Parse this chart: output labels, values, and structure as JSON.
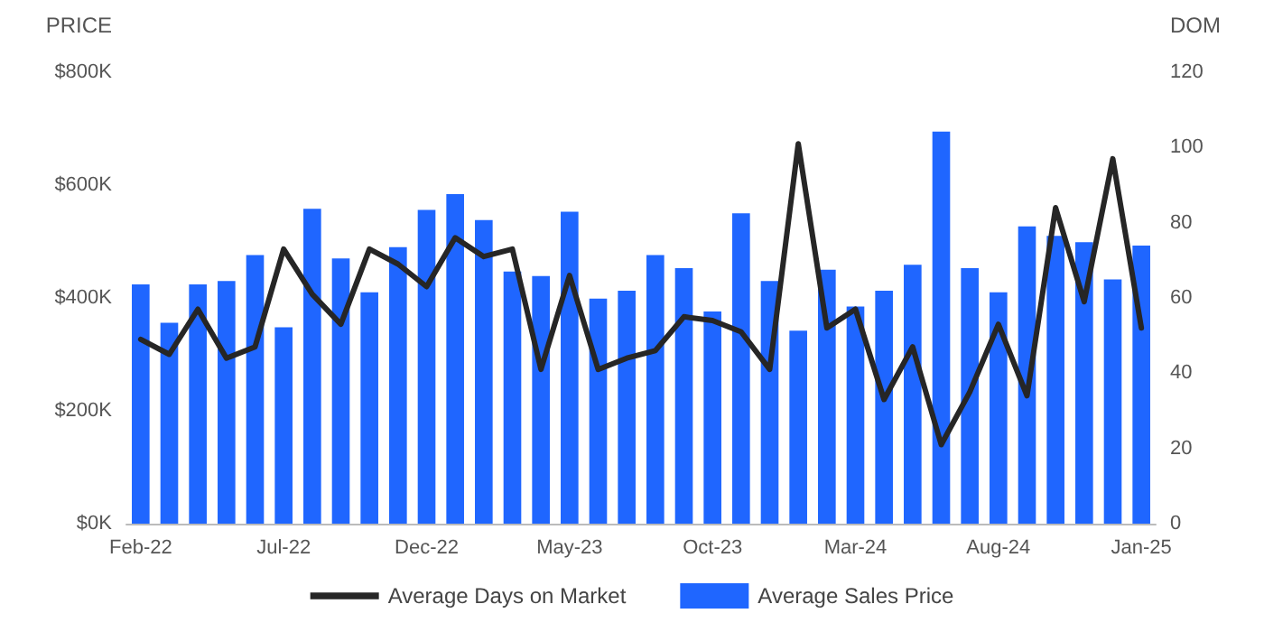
{
  "chart_data": {
    "type": "bar",
    "ylabel": "PRICE",
    "y2label": "DOM",
    "categories": [
      "Feb-22",
      null,
      null,
      null,
      null,
      "Jul-22",
      null,
      null,
      null,
      null,
      "Dec-22",
      null,
      null,
      null,
      null,
      "May-23",
      null,
      null,
      null,
      null,
      "Oct-23",
      null,
      null,
      null,
      null,
      "Mar-24",
      null,
      null,
      null,
      null,
      "Aug-24",
      null,
      null,
      null,
      null,
      "Jan-25"
    ],
    "series": [
      {
        "name": "Average Sales Price",
        "color": "#1f66ff",
        "values": [
          424,
          356,
          424,
          430,
          476,
          348,
          558,
          470,
          410,
          490,
          556,
          584,
          538,
          447,
          439,
          553,
          399,
          413,
          476,
          453,
          376,
          550,
          430,
          342,
          450,
          385,
          413,
          459,
          695,
          453,
          410,
          527,
          510,
          499,
          433,
          493
        ]
      },
      {
        "name": "Average Days on Market",
        "type": "line",
        "axis": "y2",
        "color": "#262626",
        "values": [
          49,
          45,
          57,
          44,
          47,
          73,
          61,
          53,
          73,
          69,
          63,
          76,
          71,
          73,
          41,
          66,
          41,
          44,
          46,
          55,
          54,
          51,
          41,
          101,
          52,
          57,
          33,
          47,
          21,
          35,
          53,
          34,
          84,
          59,
          97,
          52
        ]
      }
    ],
    "ylim": [
      0,
      800
    ],
    "yticks": [
      {
        "value": 0,
        "label": "$0K"
      },
      {
        "value": 200,
        "label": "$200K"
      },
      {
        "value": 400,
        "label": "$400K"
      },
      {
        "value": 600,
        "label": "$600K"
      },
      {
        "value": 800,
        "label": "$800K"
      }
    ],
    "y2lim": [
      0,
      120
    ],
    "y2ticks": [
      0,
      20,
      40,
      60,
      80,
      100,
      120
    ],
    "grid": false,
    "legend": "bottom",
    "marker": "none",
    "line_style": "solid"
  }
}
